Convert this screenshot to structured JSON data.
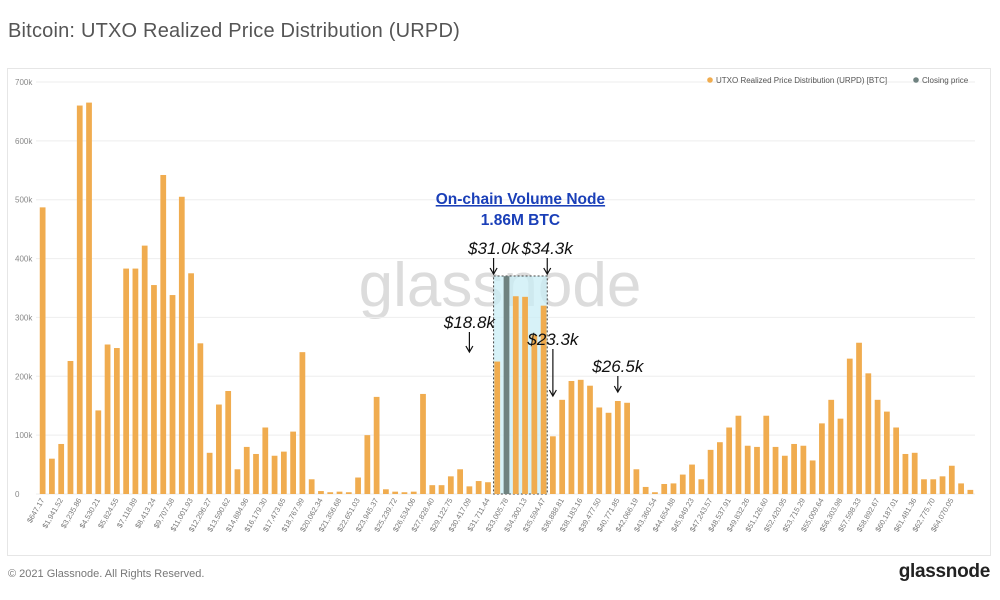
{
  "title": "Bitcoin: UTXO Realized Price Distribution (URPD)",
  "footer": {
    "copyright": "© 2021 Glassnode. All Rights Reserved.",
    "logo": "glassnode"
  },
  "watermark": "glassnode",
  "colors": {
    "bar": "#f0ac4f",
    "closing": "#6f8280",
    "highlight_fill": "#c9eef6",
    "node_title": "#1a3fb8"
  },
  "legend": [
    {
      "label": "UTXO Realized Price Distribution (URPD) [BTC]",
      "color": "#f0ac4f"
    },
    {
      "label": "Closing price",
      "color": "#6f8280"
    }
  ],
  "annotations": {
    "node_title": "On-chain Volume Node",
    "node_value": "1.86M BTC",
    "labels": [
      {
        "text": "$18.8k",
        "bar_index": 46
      },
      {
        "text": "$23.3k",
        "bar_index": 55
      },
      {
        "text": "$26.5k",
        "bar_index": 62
      },
      {
        "text": "$31.0k",
        "bar_index": 70
      },
      {
        "text": "$34.3k",
        "bar_index": 78
      }
    ]
  },
  "chart_data": {
    "type": "bar",
    "ylim": [
      0,
      700000
    ],
    "yticks": [
      "0",
      "100k",
      "200k",
      "300k",
      "400k",
      "500k",
      "600k",
      "700k"
    ],
    "xtick_labels": [
      "$647.17",
      "$1,941.52",
      "$3,235.86",
      "$4,530.21",
      "$5,824.55",
      "$7,118.89",
      "$8,413.24",
      "$9,707.58",
      "$11,001.93",
      "$12,296.27",
      "$13,590.62",
      "$14,884.96",
      "$16,179.30",
      "$17,473.65",
      "$18,767.99",
      "$20,062.34",
      "$21,356.68",
      "$22,651.03",
      "$23,945.37",
      "$25,239.72",
      "$26,534.06",
      "$27,828.40",
      "$29,122.75",
      "$30,417.09",
      "$31,711.44",
      "$33,005.78",
      "$34,300.13",
      "$35,594.47",
      "$36,888.81",
      "$38,183.16",
      "$39,477.50",
      "$40,771.85",
      "$42,066.19",
      "$43,360.54",
      "$44,654.88",
      "$45,949.23",
      "$47,243.57",
      "$48,537.91",
      "$49,832.26",
      "$51,126.60",
      "$52,420.95",
      "$53,715.29",
      "$55,009.64",
      "$56,303.98",
      "$57,598.33",
      "$58,892.67",
      "$60,187.01",
      "$61,481.36",
      "$62,775.70",
      "$64,070.05"
    ],
    "values": [
      487000,
      60000,
      85000,
      226000,
      660000,
      665000,
      142000,
      254000,
      248000,
      383000,
      383000,
      422000,
      355000,
      542000,
      338000,
      505000,
      375000,
      256000,
      70000,
      152000,
      175000,
      42000,
      80000,
      68000,
      113000,
      65000,
      72000,
      106000,
      241000,
      25000,
      5000,
      3000,
      4000,
      3000,
      28000,
      100000,
      165000,
      8000,
      4000,
      3000,
      4000,
      170000,
      15000,
      15000,
      30000,
      42000,
      13000,
      22000,
      20000,
      225000,
      370000,
      336000,
      335000,
      270000,
      320000,
      98000,
      160000,
      192000,
      194000,
      184000,
      147000,
      138000,
      158000,
      155000,
      42000,
      12000,
      3000,
      17000,
      18000,
      33000,
      50000,
      25000,
      75000,
      88000,
      113000,
      133000,
      82000,
      80000,
      133000,
      80000,
      65000,
      85000,
      82000,
      57000,
      120000,
      160000,
      128000,
      230000,
      257000,
      205000,
      160000,
      140000,
      113000,
      68000,
      70000,
      25000,
      25000,
      30000,
      48000,
      18000,
      7000
    ],
    "closing_price_index": 50,
    "highlight_range": [
      49,
      54
    ]
  }
}
